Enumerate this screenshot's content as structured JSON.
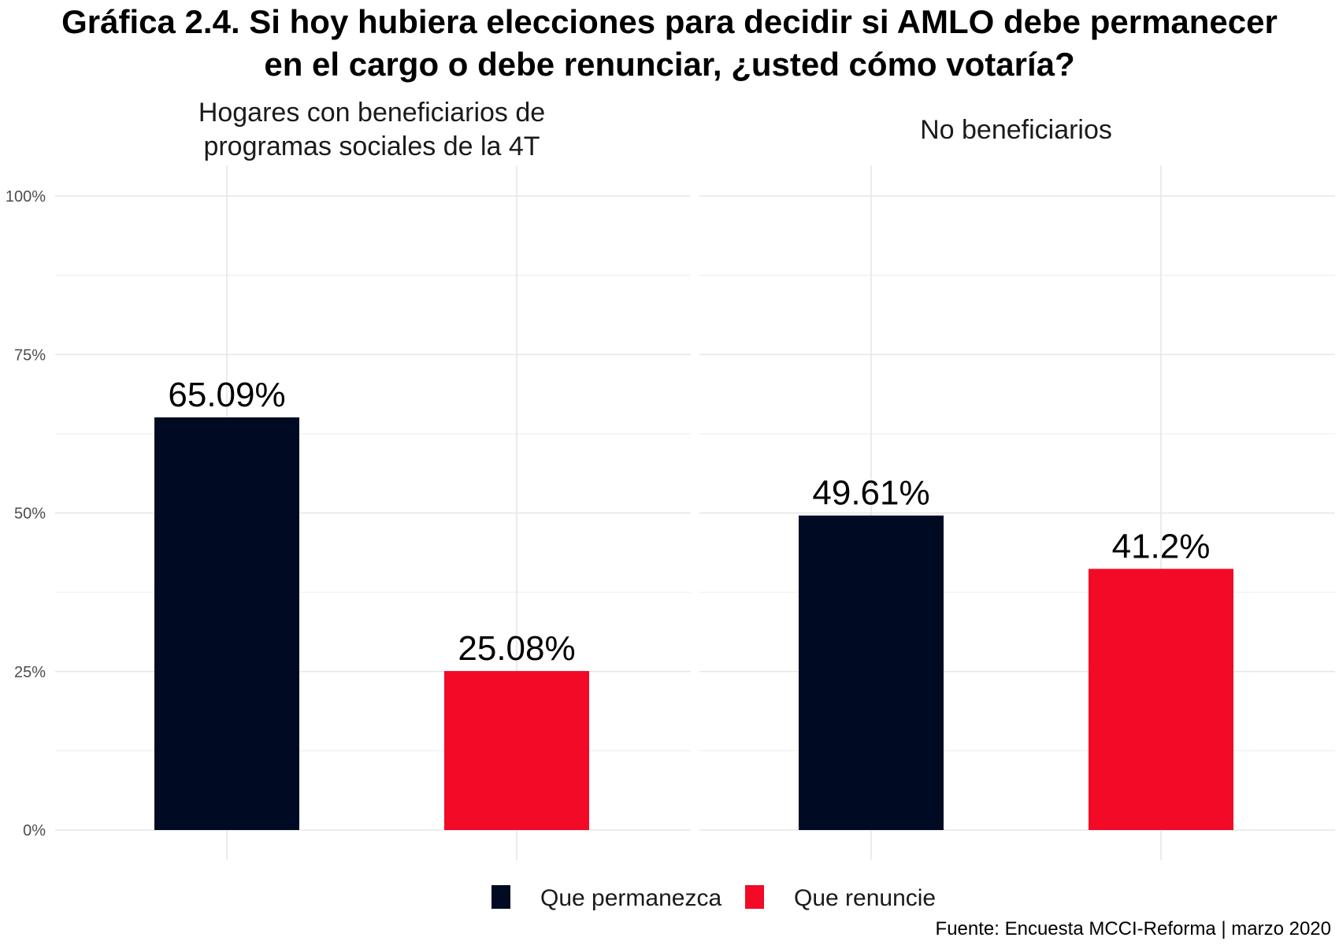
{
  "chart_data": {
    "type": "bar",
    "title_lines": [
      "Gráfica 2.4. Si hoy hubiera elecciones para decidir si AMLO debe permanecer",
      "en el cargo o debe renunciar, ¿usted cómo votaría?"
    ],
    "caption": "Fuente: Encuesta MCCI-Reforma | marzo 2020",
    "xlabel": "",
    "ylabel": "",
    "ylim": [
      0,
      100
    ],
    "y_ticks": [
      0,
      25,
      50,
      75,
      100
    ],
    "y_tick_labels": [
      "0%",
      "25%",
      "50%",
      "75%",
      "100%"
    ],
    "grid": true,
    "legend": {
      "position": "bottom"
    },
    "series": [
      {
        "name": "Que permanezca",
        "color": "#000b23"
      },
      {
        "name": "Que renuncie",
        "color": "#f20a27"
      }
    ],
    "facets": [
      {
        "title_lines": [
          "Hogares con beneficiarios de",
          "programas sociales de la 4T"
        ],
        "values": [
          65.09,
          25.08
        ],
        "labels": [
          "65.09%",
          "25.08%"
        ]
      },
      {
        "title_lines": [
          "No beneficiarios"
        ],
        "values": [
          49.61,
          41.2
        ],
        "labels": [
          "49.61%",
          "41.2%"
        ]
      }
    ]
  }
}
